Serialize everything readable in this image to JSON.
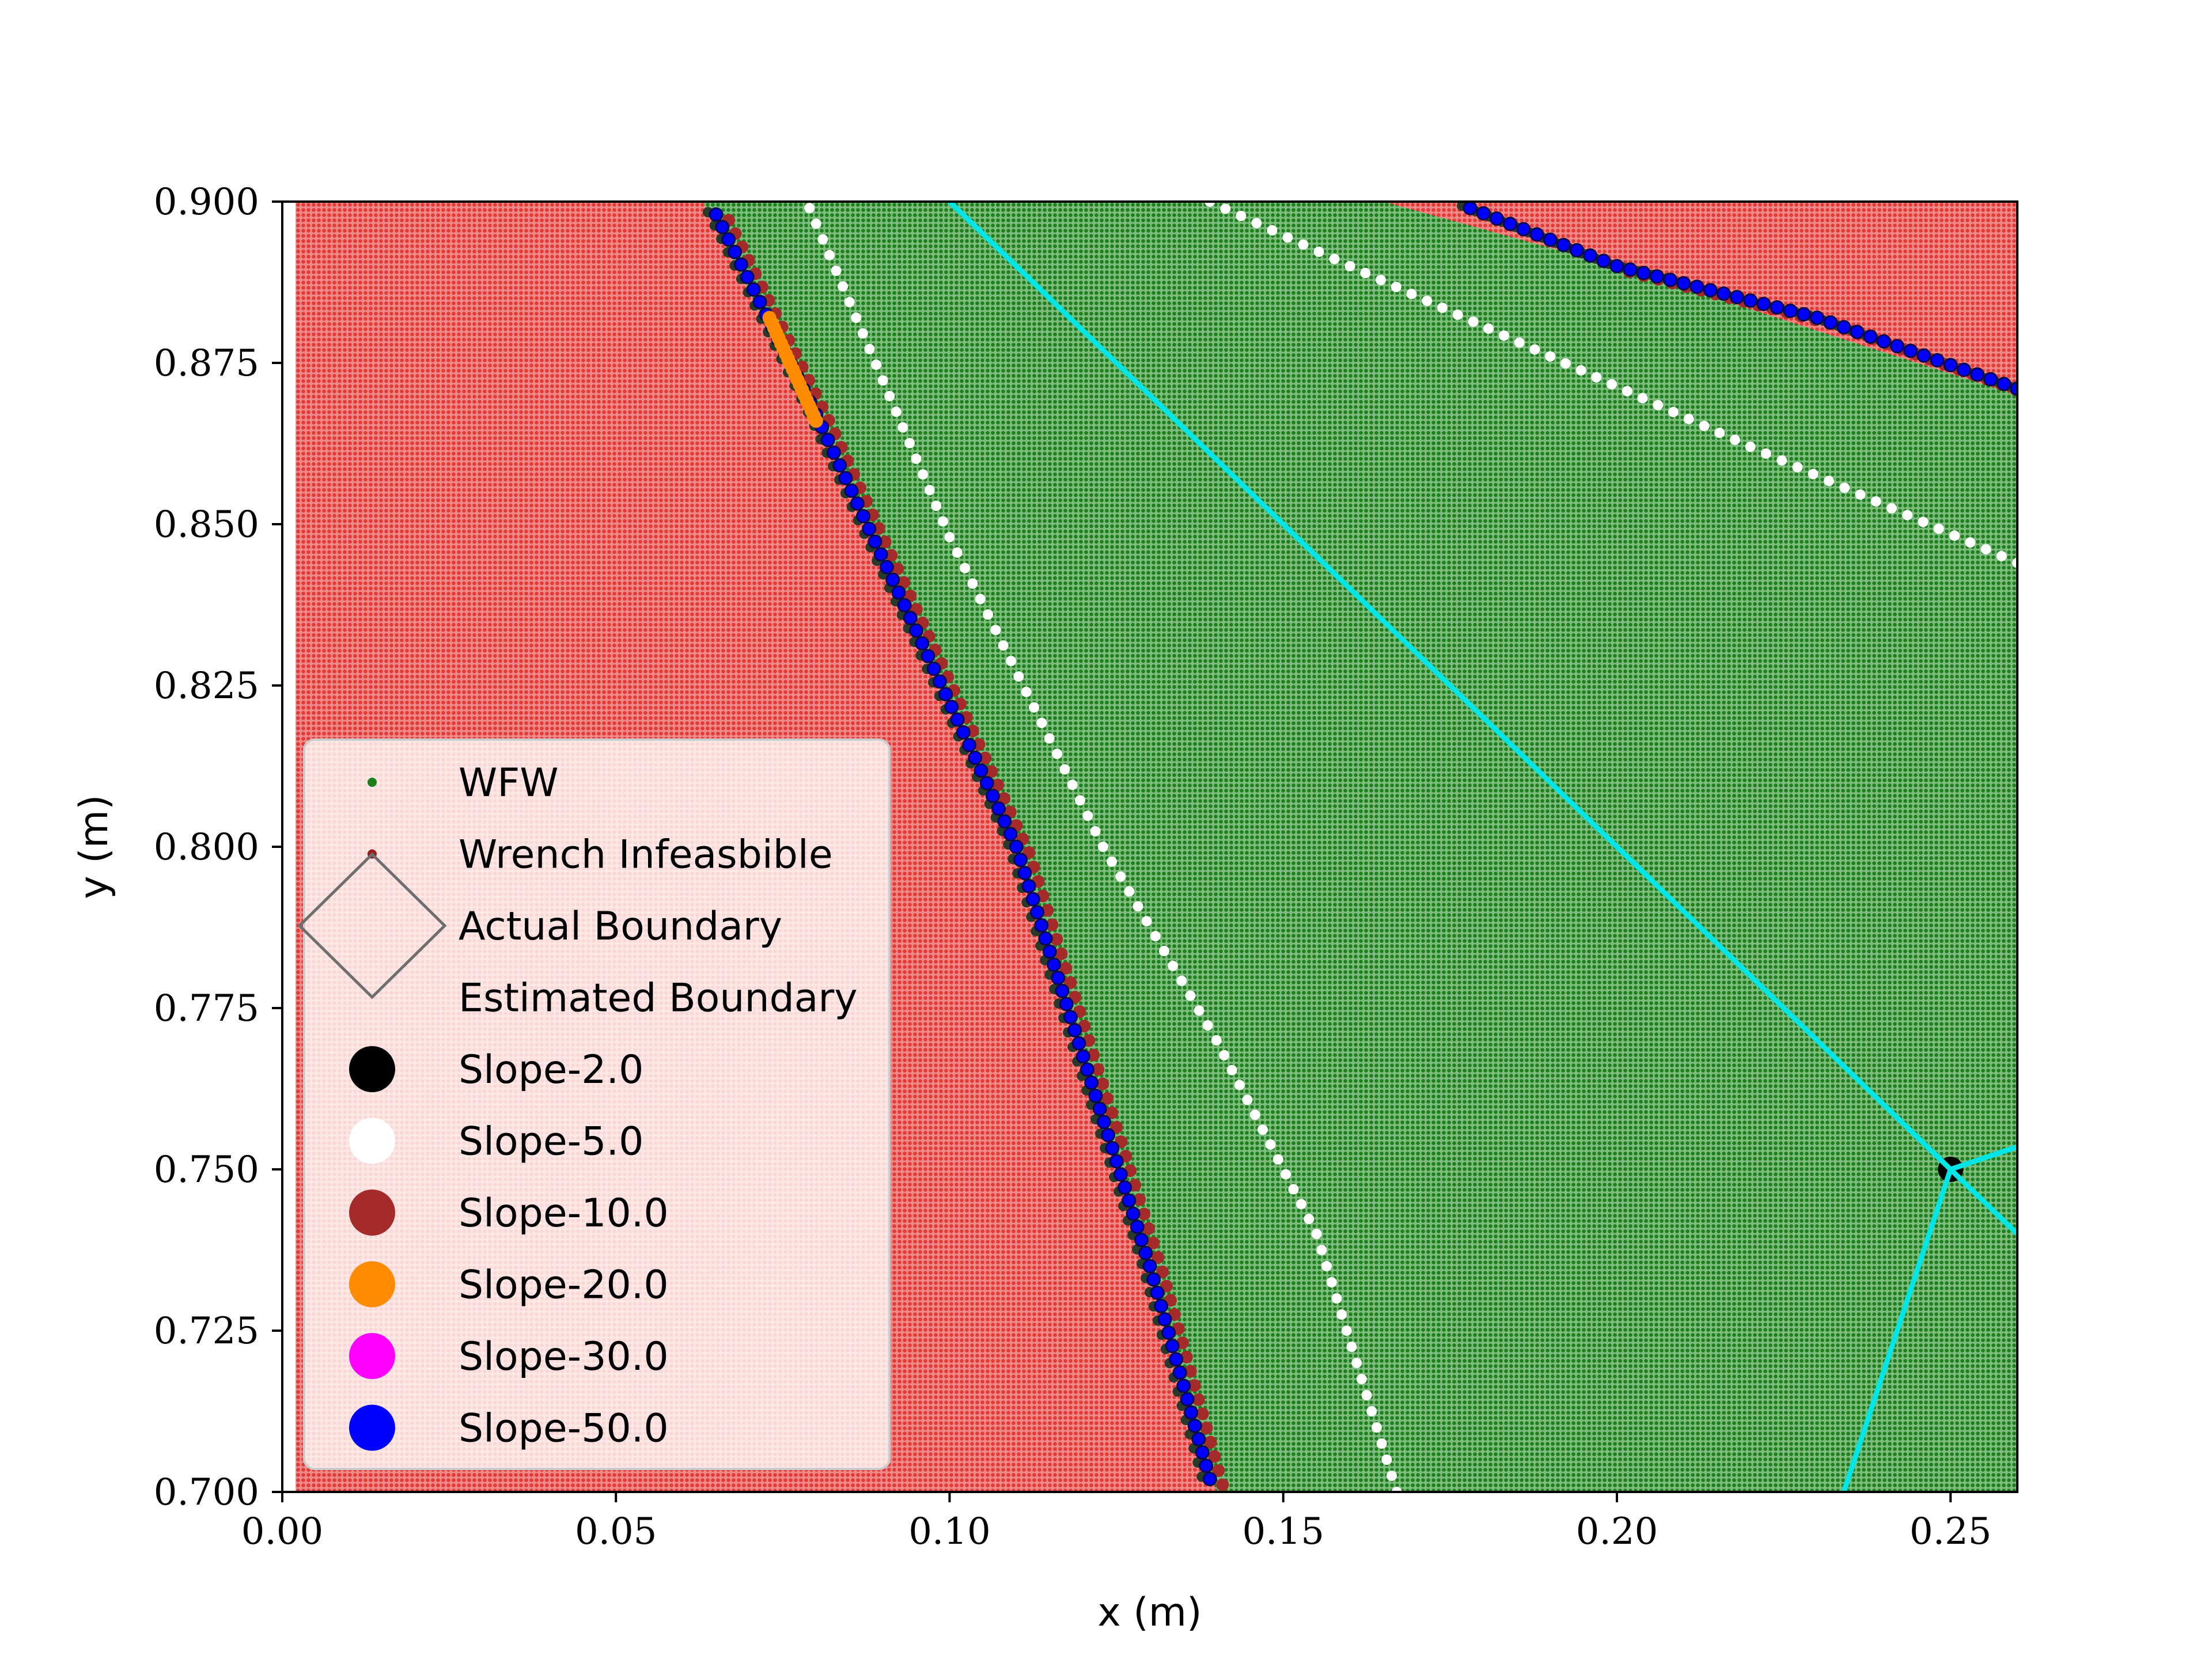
{
  "chart_data": {
    "type": "scatter",
    "xlabel": "x (m)",
    "ylabel": "y (m)",
    "xlim": [
      0.0,
      0.26
    ],
    "ylim": [
      0.7,
      0.9
    ],
    "x_ticks": [
      "0.00",
      "0.05",
      "0.10",
      "0.15",
      "0.20",
      "0.25"
    ],
    "x_tick_values": [
      0.0,
      0.05,
      0.1,
      0.15,
      0.2,
      0.25
    ],
    "y_ticks": [
      "0.700",
      "0.725",
      "0.750",
      "0.775",
      "0.800",
      "0.825",
      "0.850",
      "0.875",
      "0.900"
    ],
    "y_tick_values": [
      0.7,
      0.725,
      0.75,
      0.775,
      0.8,
      0.825,
      0.85,
      0.875,
      0.9
    ],
    "legend": {
      "placement": "center-left",
      "entries": [
        {
          "label": "WFW",
          "color": "#1a7f1a",
          "marker": "small-dot"
        },
        {
          "label": "Wrench Infeasbible",
          "color": "#9c1c1c",
          "marker": "small-dot"
        },
        {
          "label": "Actual Boundary",
          "color": "#6e6e6e",
          "marker": "diamond"
        },
        {
          "label": "Estimated Boundary",
          "color": "",
          "marker": "none"
        },
        {
          "label": "Slope-2.0",
          "color": "#000000",
          "marker": "circle"
        },
        {
          "label": "Slope-5.0",
          "color": "#ffffff",
          "marker": "circle"
        },
        {
          "label": "Slope-10.0",
          "color": "#a52a2a",
          "marker": "circle"
        },
        {
          "label": "Slope-20.0",
          "color": "#ff8c00",
          "marker": "circle"
        },
        {
          "label": "Slope-30.0",
          "color": "#ff00ff",
          "marker": "circle"
        },
        {
          "label": "Slope-50.0",
          "color": "#0000ff",
          "marker": "circle"
        }
      ]
    },
    "regions": {
      "infeasible_color": "#e8504d",
      "feasible_color": "#2e8b2e",
      "infeasible_left_edge_x": 0.002,
      "boundary_left": {
        "x": [
          0.063,
          0.08,
          0.11,
          0.13,
          0.14
        ],
        "y": [
          0.9,
          0.866,
          0.8,
          0.735,
          0.7
        ]
      },
      "boundary_top": {
        "x": [
          0.165,
          0.2,
          0.26
        ],
        "y": [
          0.9,
          0.89,
          0.87
        ]
      }
    },
    "series": [
      {
        "name": "Slope-50.0",
        "color": "#0000ff",
        "x": [
          0.065,
          0.08,
          0.11,
          0.13,
          0.139
        ],
        "y": [
          0.898,
          0.867,
          0.8,
          0.735,
          0.702
        ]
      },
      {
        "name": "Slope-50.0",
        "color": "#0000ff",
        "x": [
          0.178,
          0.2,
          0.23,
          0.26
        ],
        "y": [
          0.899,
          0.89,
          0.882,
          0.871
        ]
      },
      {
        "name": "Slope-20.0",
        "color": "#ff8c00",
        "x": [
          0.073,
          0.08
        ],
        "y": [
          0.882,
          0.866
        ]
      },
      {
        "name": "Slope-5.0",
        "color": "#ffffff",
        "x": [
          0.079,
          0.1,
          0.123,
          0.14,
          0.155,
          0.167
        ],
        "y": [
          0.899,
          0.848,
          0.8,
          0.77,
          0.74,
          0.7
        ]
      },
      {
        "name": "Slope-5.0",
        "color": "#ffffff",
        "x": [
          0.139,
          0.16,
          0.19,
          0.22,
          0.26
        ],
        "y": [
          0.9,
          0.89,
          0.876,
          0.862,
          0.844
        ]
      },
      {
        "name": "Slope-2.0",
        "color": "#000000",
        "x": [
          0.25
        ],
        "y": [
          0.75
        ]
      }
    ],
    "cyan_lines": {
      "color": "#00e5e5",
      "segments": [
        {
          "x": [
            0.1,
            0.25,
            0.26
          ],
          "y": [
            0.9,
            0.75,
            0.74
          ]
        },
        {
          "x": [
            0.25,
            0.26
          ],
          "y": [
            0.75,
            0.7535
          ]
        },
        {
          "x": [
            0.25,
            0.234
          ],
          "y": [
            0.75,
            0.7
          ]
        }
      ]
    }
  }
}
